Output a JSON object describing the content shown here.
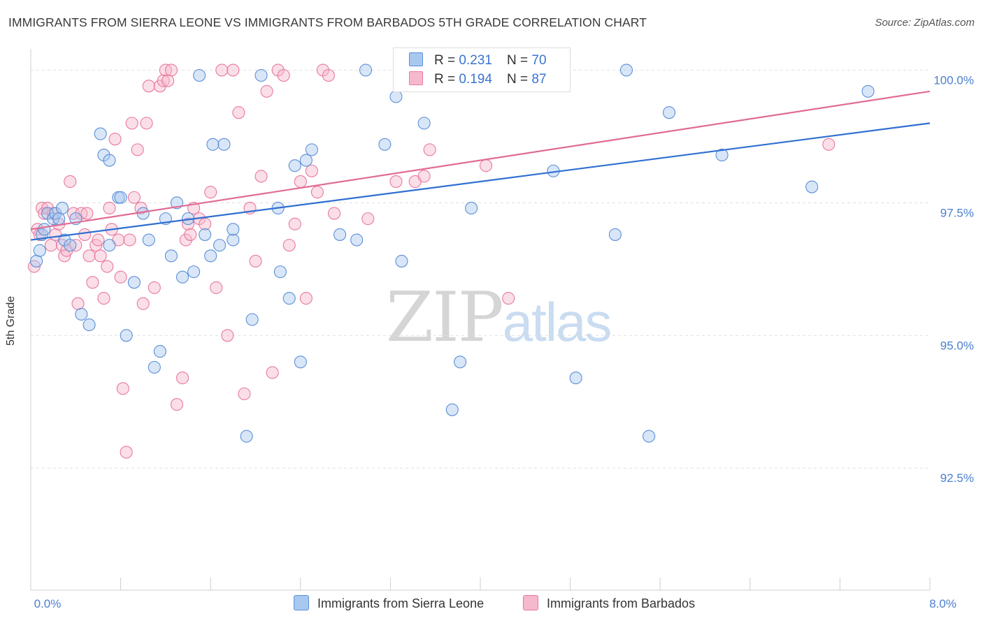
{
  "header": {
    "title": "IMMIGRANTS FROM SIERRA LEONE VS IMMIGRANTS FROM BARBADOS 5TH GRADE CORRELATION CHART",
    "source": "Source: ZipAtlas.com"
  },
  "watermark": {
    "zip": "ZIP",
    "atlas": "atlas"
  },
  "legend": {
    "series1": {
      "r_label": "R = ",
      "r_value": "0.231",
      "n_label": "N = ",
      "n_value": "70"
    },
    "series2": {
      "r_label": "R = ",
      "r_value": "0.194",
      "n_label": "N = ",
      "n_value": "87"
    }
  },
  "bottom_legend": {
    "series1": "Immigrants from Sierra Leone",
    "series2": "Immigrants from Barbados"
  },
  "colors": {
    "blue_fill": "#a9c8f0",
    "blue_stroke": "#5b8fd6",
    "blue_line": "#2f6fd1",
    "pink_fill": "#f6b8cc",
    "pink_stroke": "#e8799c",
    "pink_line": "#e06b95",
    "tick_text": "#4a7fd0",
    "grid": "#e0e0e0"
  },
  "chart_data": {
    "type": "scatter",
    "title": "IMMIGRANTS FROM SIERRA LEONE VS IMMIGRANTS FROM BARBADOS 5TH GRADE CORRELATION CHART",
    "xlabel": "",
    "ylabel": "5th Grade",
    "xlim": [
      0,
      8
    ],
    "ylim": [
      90.2,
      100.4
    ],
    "x_tick_labels": [
      "0.0%",
      "8.0%"
    ],
    "y_ticks": [
      92.5,
      95.0,
      97.5,
      100.0
    ],
    "y_tick_labels": [
      "92.5%",
      "95.0%",
      "97.5%",
      "100.0%"
    ],
    "grid": true,
    "legend_position": "top-center",
    "series": [
      {
        "name": "Immigrants from Sierra Leone",
        "R": 0.231,
        "N": 70,
        "trend": {
          "x": [
            0,
            8
          ],
          "y": [
            96.8,
            99.0
          ]
        },
        "points": [
          [
            0.05,
            96.4
          ],
          [
            0.08,
            96.6
          ],
          [
            0.1,
            96.9
          ],
          [
            0.12,
            97.0
          ],
          [
            0.15,
            97.3
          ],
          [
            0.2,
            97.2
          ],
          [
            0.22,
            97.3
          ],
          [
            0.28,
            97.4
          ],
          [
            0.3,
            96.8
          ],
          [
            0.35,
            96.7
          ],
          [
            0.4,
            97.2
          ],
          [
            0.45,
            95.4
          ],
          [
            0.52,
            95.2
          ],
          [
            0.62,
            98.8
          ],
          [
            0.65,
            98.4
          ],
          [
            0.7,
            98.3
          ],
          [
            0.7,
            96.7
          ],
          [
            0.78,
            97.6
          ],
          [
            0.8,
            97.6
          ],
          [
            0.85,
            95.0
          ],
          [
            0.92,
            96.0
          ],
          [
            1.0,
            97.3
          ],
          [
            1.05,
            96.8
          ],
          [
            1.1,
            94.4
          ],
          [
            1.15,
            94.7
          ],
          [
            1.2,
            97.2
          ],
          [
            1.25,
            96.5
          ],
          [
            1.3,
            97.5
          ],
          [
            1.35,
            96.1
          ],
          [
            1.4,
            97.2
          ],
          [
            1.45,
            96.2
          ],
          [
            1.5,
            99.9
          ],
          [
            1.55,
            96.9
          ],
          [
            1.6,
            96.5
          ],
          [
            1.62,
            98.6
          ],
          [
            1.68,
            96.7
          ],
          [
            1.72,
            98.6
          ],
          [
            1.8,
            96.8
          ],
          [
            1.8,
            97.0
          ],
          [
            1.92,
            93.1
          ],
          [
            1.97,
            95.3
          ],
          [
            2.05,
            99.9
          ],
          [
            2.2,
            97.4
          ],
          [
            2.22,
            96.2
          ],
          [
            2.3,
            95.7
          ],
          [
            2.35,
            98.2
          ],
          [
            2.4,
            94.5
          ],
          [
            2.45,
            98.3
          ],
          [
            2.5,
            98.5
          ],
          [
            2.75,
            96.9
          ],
          [
            2.9,
            96.8
          ],
          [
            2.98,
            100.0
          ],
          [
            3.15,
            98.6
          ],
          [
            3.25,
            99.5
          ],
          [
            3.3,
            96.4
          ],
          [
            3.5,
            99.0
          ],
          [
            3.75,
            93.6
          ],
          [
            3.82,
            94.5
          ],
          [
            3.92,
            97.4
          ],
          [
            4.0,
            100.0
          ],
          [
            4.65,
            98.1
          ],
          [
            4.85,
            94.2
          ],
          [
            5.2,
            96.9
          ],
          [
            5.3,
            100.0
          ],
          [
            5.5,
            93.1
          ],
          [
            5.68,
            99.2
          ],
          [
            7.45,
            99.6
          ],
          [
            6.15,
            98.4
          ],
          [
            6.95,
            97.8
          ],
          [
            0.25,
            97.2
          ]
        ]
      },
      {
        "name": "Immigrants from Barbados",
        "R": 0.194,
        "N": 87,
        "trend": {
          "x": [
            0,
            8
          ],
          "y": [
            97.0,
            99.6
          ]
        },
        "points": [
          [
            0.03,
            96.3
          ],
          [
            0.06,
            97.0
          ],
          [
            0.08,
            96.9
          ],
          [
            0.1,
            97.4
          ],
          [
            0.12,
            97.3
          ],
          [
            0.15,
            97.4
          ],
          [
            0.18,
            96.7
          ],
          [
            0.2,
            97.3
          ],
          [
            0.22,
            96.9
          ],
          [
            0.25,
            97.1
          ],
          [
            0.28,
            96.7
          ],
          [
            0.3,
            96.5
          ],
          [
            0.32,
            96.6
          ],
          [
            0.35,
            97.9
          ],
          [
            0.38,
            97.3
          ],
          [
            0.4,
            96.7
          ],
          [
            0.42,
            95.6
          ],
          [
            0.45,
            97.3
          ],
          [
            0.48,
            96.9
          ],
          [
            0.5,
            97.3
          ],
          [
            0.52,
            96.5
          ],
          [
            0.55,
            96.0
          ],
          [
            0.58,
            96.7
          ],
          [
            0.6,
            96.8
          ],
          [
            0.62,
            96.5
          ],
          [
            0.65,
            95.7
          ],
          [
            0.68,
            96.3
          ],
          [
            0.7,
            97.4
          ],
          [
            0.72,
            97.0
          ],
          [
            0.75,
            98.7
          ],
          [
            0.78,
            96.8
          ],
          [
            0.8,
            96.1
          ],
          [
            0.82,
            94.0
          ],
          [
            0.85,
            92.8
          ],
          [
            0.88,
            96.8
          ],
          [
            0.9,
            99.0
          ],
          [
            0.92,
            97.6
          ],
          [
            0.95,
            98.5
          ],
          [
            0.98,
            97.4
          ],
          [
            1.0,
            95.6
          ],
          [
            1.03,
            99.0
          ],
          [
            1.05,
            99.7
          ],
          [
            1.1,
            95.9
          ],
          [
            1.15,
            99.7
          ],
          [
            1.18,
            99.8
          ],
          [
            1.2,
            100.0
          ],
          [
            1.22,
            99.8
          ],
          [
            1.25,
            100.0
          ],
          [
            1.3,
            93.7
          ],
          [
            1.35,
            94.2
          ],
          [
            1.38,
            96.8
          ],
          [
            1.4,
            97.1
          ],
          [
            1.42,
            96.9
          ],
          [
            1.45,
            97.4
          ],
          [
            1.5,
            97.2
          ],
          [
            1.55,
            97.1
          ],
          [
            1.6,
            97.7
          ],
          [
            1.65,
            95.9
          ],
          [
            1.7,
            100.0
          ],
          [
            1.75,
            95.0
          ],
          [
            1.8,
            100.0
          ],
          [
            1.85,
            99.2
          ],
          [
            1.9,
            93.9
          ],
          [
            1.95,
            97.4
          ],
          [
            2.0,
            96.4
          ],
          [
            2.05,
            98.0
          ],
          [
            2.1,
            99.6
          ],
          [
            2.15,
            94.3
          ],
          [
            2.2,
            100.0
          ],
          [
            2.25,
            99.9
          ],
          [
            2.3,
            96.7
          ],
          [
            2.35,
            97.1
          ],
          [
            2.4,
            97.9
          ],
          [
            2.45,
            95.7
          ],
          [
            2.5,
            98.1
          ],
          [
            2.55,
            97.7
          ],
          [
            2.6,
            100.0
          ],
          [
            2.65,
            99.9
          ],
          [
            2.7,
            97.3
          ],
          [
            3.0,
            97.2
          ],
          [
            3.25,
            97.9
          ],
          [
            3.42,
            97.9
          ],
          [
            3.5,
            98.0
          ],
          [
            3.55,
            98.5
          ],
          [
            4.05,
            98.2
          ],
          [
            4.25,
            95.7
          ],
          [
            7.1,
            98.6
          ]
        ]
      }
    ]
  }
}
